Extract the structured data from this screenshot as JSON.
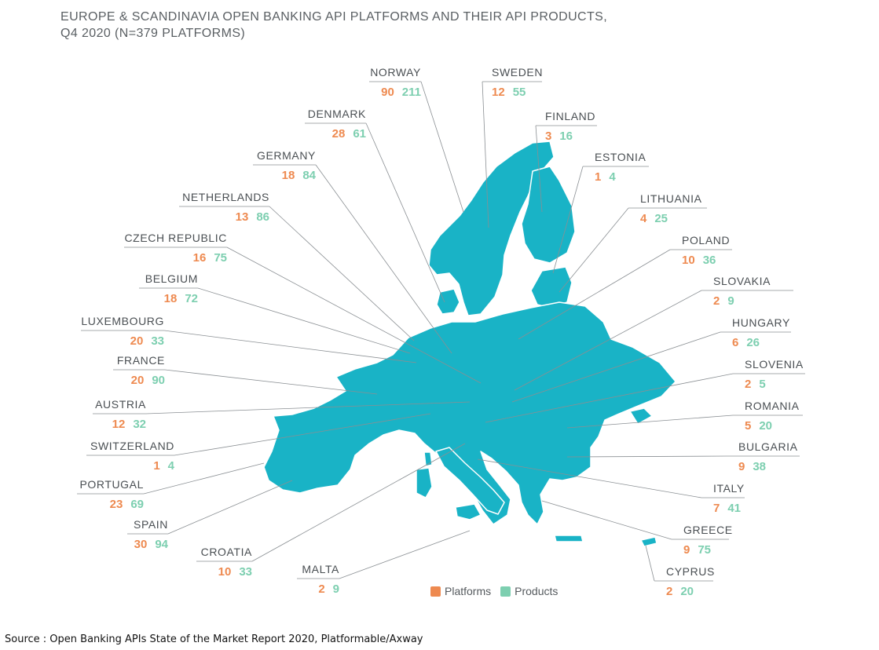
{
  "title": {
    "line1": "EUROPE & SCANDINAVIA OPEN BANKING API PLATFORMS AND THEIR API PRODUCTS,",
    "line2": "Q4 2020 (N=379 PLATFORMS)"
  },
  "colors": {
    "platforms": "#ee8a50",
    "products": "#7dcfb0",
    "map_fill": "#19b3c6",
    "map_border": "#ffffff",
    "leader": "#8a8f93"
  },
  "legend": {
    "platforms": "Platforms",
    "products": "Products"
  },
  "countries": [
    {
      "name": "NORWAY",
      "platforms": "90",
      "products": "211"
    },
    {
      "name": "SWEDEN",
      "platforms": "12",
      "products": "55"
    },
    {
      "name": "DENMARK",
      "platforms": "28",
      "products": "61"
    },
    {
      "name": "FINLAND",
      "platforms": "3",
      "products": "16"
    },
    {
      "name": "GERMANY",
      "platforms": "18",
      "products": "84"
    },
    {
      "name": "ESTONIA",
      "platforms": "1",
      "products": "4"
    },
    {
      "name": "NETHERLANDS",
      "platforms": "13",
      "products": "86"
    },
    {
      "name": "LITHUANIA",
      "platforms": "4",
      "products": "25"
    },
    {
      "name": "CZECH REPUBLIC",
      "platforms": "16",
      "products": "75"
    },
    {
      "name": "POLAND",
      "platforms": "10",
      "products": "36"
    },
    {
      "name": "BELGIUM",
      "platforms": "18",
      "products": "72"
    },
    {
      "name": "SLOVAKIA",
      "platforms": "2",
      "products": "9"
    },
    {
      "name": "LUXEMBOURG",
      "platforms": "20",
      "products": "33"
    },
    {
      "name": "HUNGARY",
      "platforms": "6",
      "products": "26"
    },
    {
      "name": "FRANCE",
      "platforms": "20",
      "products": "90"
    },
    {
      "name": "SLOVENIA",
      "platforms": "2",
      "products": "5"
    },
    {
      "name": "AUSTRIA",
      "platforms": "12",
      "products": "32"
    },
    {
      "name": "ROMANIA",
      "platforms": "5",
      "products": "20"
    },
    {
      "name": "SWITZERLAND",
      "platforms": "1",
      "products": "4"
    },
    {
      "name": "BULGARIA",
      "platforms": "9",
      "products": "38"
    },
    {
      "name": "PORTUGAL",
      "platforms": "23",
      "products": "69"
    },
    {
      "name": "ITALY",
      "platforms": "7",
      "products": "41"
    },
    {
      "name": "SPAIN",
      "platforms": "30",
      "products": "94"
    },
    {
      "name": "GREECE",
      "platforms": "9",
      "products": "75"
    },
    {
      "name": "CROATIA",
      "platforms": "10",
      "products": "33"
    },
    {
      "name": "CYPRUS",
      "platforms": "2",
      "products": "20"
    },
    {
      "name": "MALTA",
      "platforms": "2",
      "products": "9"
    }
  ],
  "source": "Source : Open Banking APIs State of the Market Report 2020, Platformable/Axway"
}
